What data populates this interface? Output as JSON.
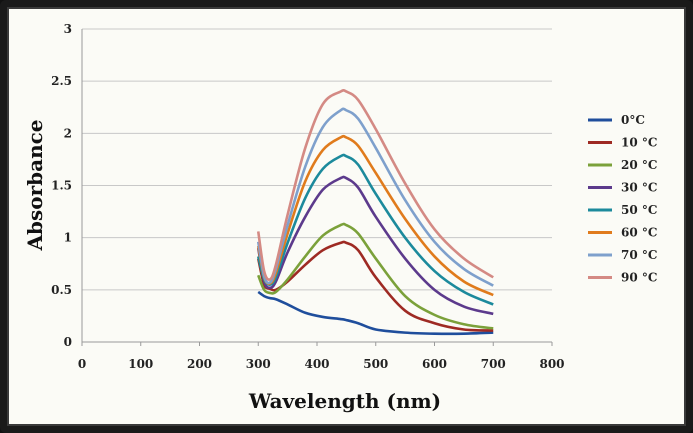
{
  "chart_data": {
    "type": "line",
    "title": "",
    "xlabel": "Wavelength (nm)",
    "ylabel": "Absorbance",
    "xlim": [
      0,
      800
    ],
    "ylim": [
      0,
      3
    ],
    "xticks": [
      0,
      100,
      200,
      300,
      400,
      500,
      600,
      700,
      800
    ],
    "yticks": [
      0,
      0.5,
      1,
      1.5,
      2,
      2.5,
      3
    ],
    "xtick_labels": [
      "0",
      "100",
      "200",
      "300",
      "400",
      "500",
      "600",
      "700",
      "800"
    ],
    "ytick_labels": [
      "0",
      "0.5",
      "1",
      "1.5",
      "2",
      "2.5",
      "3"
    ],
    "grid": "horizontal",
    "legend_position": "right",
    "x": [
      300,
      310,
      320,
      330,
      350,
      380,
      410,
      440,
      450,
      470,
      500,
      550,
      600,
      650,
      700
    ],
    "series": [
      {
        "name": "0°C",
        "color": "#1f4e9c",
        "values": [
          0.48,
          0.44,
          0.42,
          0.41,
          0.36,
          0.28,
          0.24,
          0.22,
          0.21,
          0.18,
          0.12,
          0.09,
          0.08,
          0.08,
          0.09
        ]
      },
      {
        "name": "10 °C",
        "color": "#9e2a23",
        "values": [
          0.8,
          0.55,
          0.51,
          0.5,
          0.58,
          0.74,
          0.88,
          0.95,
          0.95,
          0.88,
          0.62,
          0.3,
          0.18,
          0.12,
          0.11
        ]
      },
      {
        "name": "20 °C",
        "color": "#7ba13a",
        "values": [
          0.64,
          0.5,
          0.47,
          0.48,
          0.6,
          0.82,
          1.02,
          1.12,
          1.12,
          1.04,
          0.8,
          0.44,
          0.26,
          0.17,
          0.13
        ]
      },
      {
        "name": "30 °C",
        "color": "#5c3a8c",
        "values": [
          0.9,
          0.58,
          0.52,
          0.58,
          0.86,
          1.2,
          1.46,
          1.57,
          1.57,
          1.48,
          1.2,
          0.8,
          0.5,
          0.34,
          0.27
        ]
      },
      {
        "name": "50 °C",
        "color": "#1c8a9c",
        "values": [
          0.82,
          0.6,
          0.55,
          0.62,
          0.95,
          1.38,
          1.66,
          1.78,
          1.78,
          1.7,
          1.42,
          1.0,
          0.68,
          0.48,
          0.36
        ]
      },
      {
        "name": "60 °C",
        "color": "#e07b1c",
        "values": [
          0.92,
          0.62,
          0.56,
          0.66,
          1.04,
          1.54,
          1.84,
          1.96,
          1.96,
          1.88,
          1.62,
          1.18,
          0.82,
          0.58,
          0.45
        ]
      },
      {
        "name": "70 °C",
        "color": "#7ea0cc",
        "values": [
          0.96,
          0.63,
          0.57,
          0.7,
          1.12,
          1.68,
          2.06,
          2.22,
          2.22,
          2.14,
          1.86,
          1.36,
          0.96,
          0.7,
          0.54
        ]
      },
      {
        "name": "90 °C",
        "color": "#d48a84",
        "values": [
          1.06,
          0.68,
          0.6,
          0.74,
          1.22,
          1.86,
          2.28,
          2.4,
          2.4,
          2.32,
          2.04,
          1.52,
          1.08,
          0.8,
          0.62
        ]
      }
    ]
  }
}
